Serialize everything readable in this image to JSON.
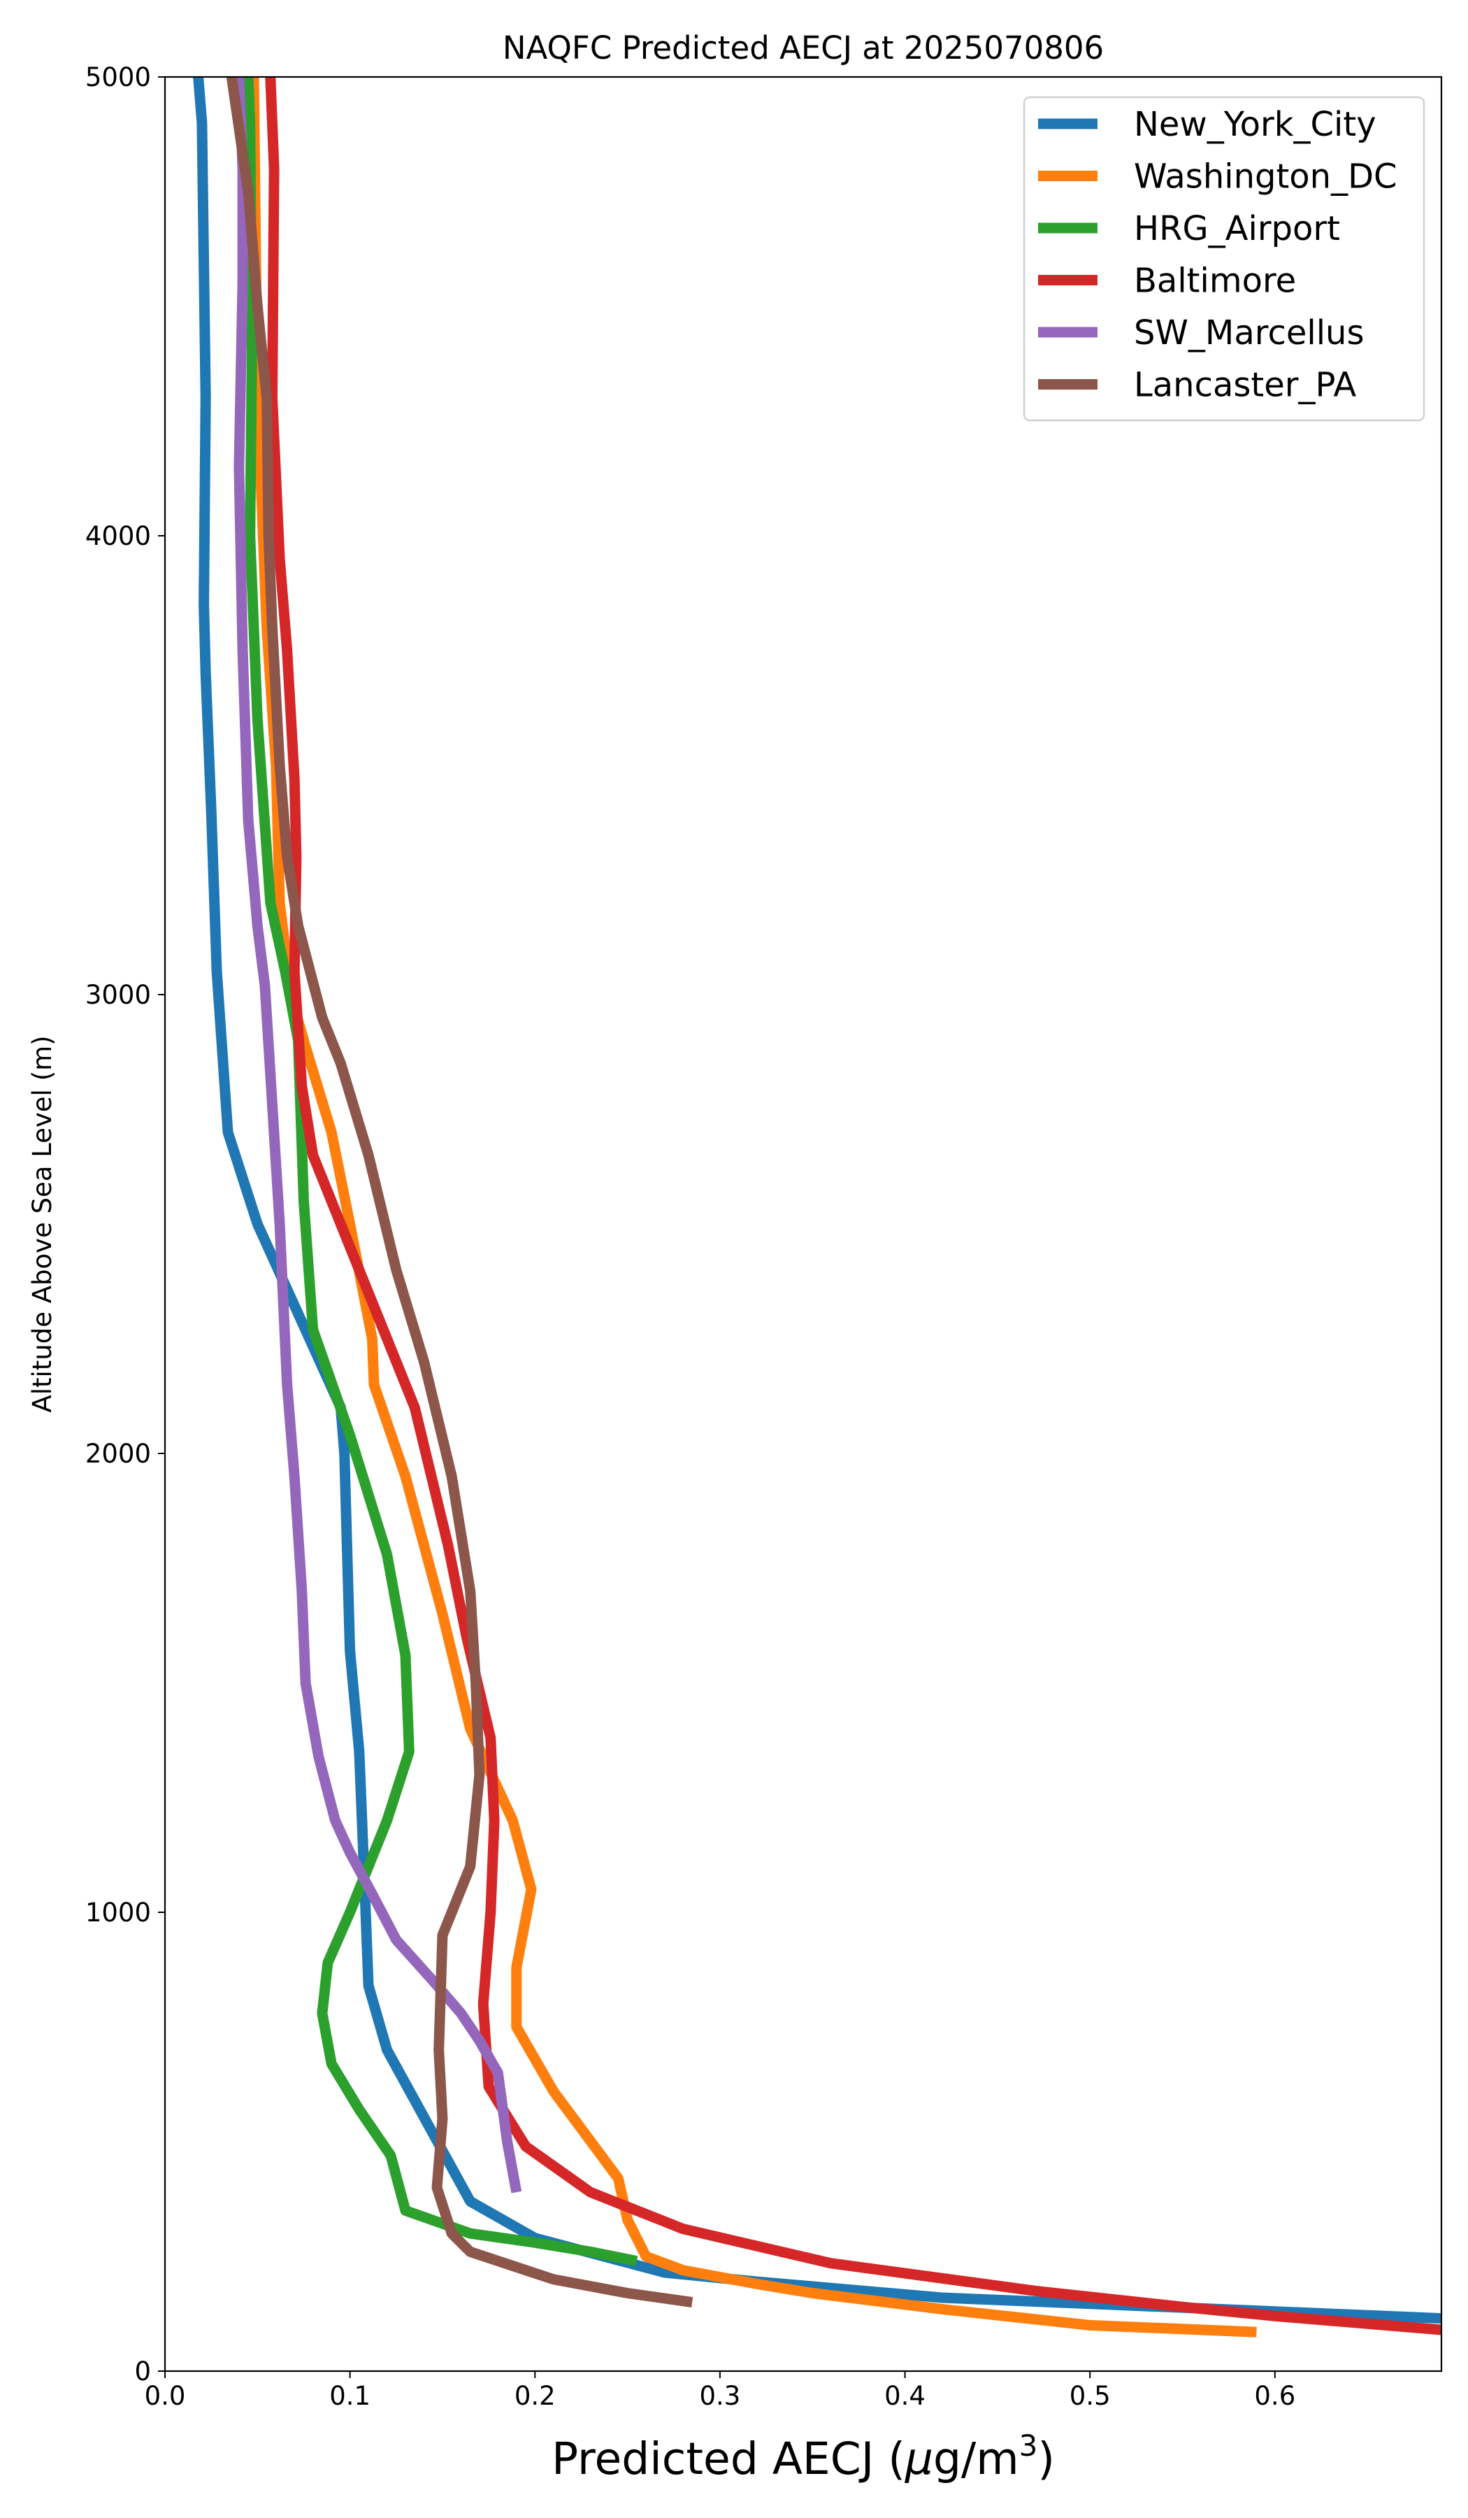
{
  "chart_data": {
    "type": "line",
    "title": "NAQFC Predicted AECJ at 2025070806",
    "xlabel": "Predicted AECJ (μg/m³)",
    "xlabel_parts": {
      "pre": "Predicted AECJ (",
      "mu": "μ",
      "mid": "g/m",
      "sup": "3",
      "post": ")"
    },
    "ylabel": "Altitude Above Sea Level (m)",
    "xlim": [
      0.0,
      0.69
    ],
    "ylim": [
      0,
      5000
    ],
    "xticks": [
      "0.0",
      "0.1",
      "0.2",
      "0.3",
      "0.4",
      "0.5",
      "0.6"
    ],
    "yticks": [
      "0",
      "1000",
      "2000",
      "3000",
      "4000",
      "5000"
    ],
    "grid": false,
    "legend_position": "top-right",
    "series": [
      {
        "name": "New_York_City",
        "color": "#1f77b4",
        "points": [
          [
            0.69,
            115
          ],
          [
            0.6,
            130
          ],
          [
            0.42,
            160
          ],
          [
            0.32,
            195
          ],
          [
            0.27,
            215
          ],
          [
            0.2,
            290
          ],
          [
            0.165,
            370
          ],
          [
            0.12,
            700
          ],
          [
            0.11,
            840
          ],
          [
            0.108,
            1050
          ],
          [
            0.105,
            1350
          ],
          [
            0.1,
            1570
          ],
          [
            0.097,
            2000
          ],
          [
            0.095,
            2100
          ],
          [
            0.05,
            2500
          ],
          [
            0.034,
            2700
          ],
          [
            0.028,
            3050
          ],
          [
            0.025,
            3400
          ],
          [
            0.022,
            3700
          ],
          [
            0.021,
            3850
          ],
          [
            0.022,
            4300
          ],
          [
            0.02,
            4900
          ],
          [
            0.018,
            5000
          ]
        ]
      },
      {
        "name": "Washington_DC",
        "color": "#ff7f0e",
        "points": [
          [
            0.59,
            85
          ],
          [
            0.5,
            100
          ],
          [
            0.42,
            135
          ],
          [
            0.35,
            170
          ],
          [
            0.32,
            190
          ],
          [
            0.28,
            220
          ],
          [
            0.26,
            250
          ],
          [
            0.25,
            330
          ],
          [
            0.245,
            420
          ],
          [
            0.21,
            610
          ],
          [
            0.19,
            750
          ],
          [
            0.19,
            880
          ],
          [
            0.198,
            1050
          ],
          [
            0.188,
            1200
          ],
          [
            0.165,
            1400
          ],
          [
            0.15,
            1650
          ],
          [
            0.13,
            1950
          ],
          [
            0.113,
            2150
          ],
          [
            0.112,
            2250
          ],
          [
            0.1,
            2500
          ],
          [
            0.09,
            2700
          ],
          [
            0.075,
            2900
          ],
          [
            0.068,
            3000
          ],
          [
            0.062,
            3200
          ],
          [
            0.06,
            3500
          ],
          [
            0.055,
            3800
          ],
          [
            0.05,
            4300
          ],
          [
            0.048,
            5000
          ]
        ]
      },
      {
        "name": "HRG_Airport",
        "color": "#2ca02c",
        "points": [
          [
            0.255,
            240
          ],
          [
            0.23,
            260
          ],
          [
            0.2,
            280
          ],
          [
            0.165,
            300
          ],
          [
            0.13,
            350
          ],
          [
            0.122,
            470
          ],
          [
            0.105,
            570
          ],
          [
            0.09,
            670
          ],
          [
            0.085,
            780
          ],
          [
            0.088,
            890
          ],
          [
            0.1,
            1000
          ],
          [
            0.12,
            1200
          ],
          [
            0.132,
            1350
          ],
          [
            0.13,
            1560
          ],
          [
            0.12,
            1780
          ],
          [
            0.1,
            2040
          ],
          [
            0.08,
            2270
          ],
          [
            0.075,
            2550
          ],
          [
            0.072,
            2900
          ],
          [
            0.065,
            3050
          ],
          [
            0.057,
            3200
          ],
          [
            0.05,
            3600
          ],
          [
            0.046,
            4000
          ],
          [
            0.047,
            4400
          ],
          [
            0.046,
            4900
          ],
          [
            0.045,
            5000
          ]
        ]
      },
      {
        "name": "Baltimore",
        "color": "#d62728",
        "points": [
          [
            0.69,
            90
          ],
          [
            0.6,
            120
          ],
          [
            0.55,
            140
          ],
          [
            0.47,
            175
          ],
          [
            0.36,
            235
          ],
          [
            0.28,
            310
          ],
          [
            0.23,
            390
          ],
          [
            0.195,
            490
          ],
          [
            0.175,
            620
          ],
          [
            0.172,
            800
          ],
          [
            0.176,
            1000
          ],
          [
            0.178,
            1200
          ],
          [
            0.176,
            1380
          ],
          [
            0.163,
            1600
          ],
          [
            0.153,
            1800
          ],
          [
            0.135,
            2100
          ],
          [
            0.12,
            2250
          ],
          [
            0.1,
            2450
          ],
          [
            0.08,
            2650
          ],
          [
            0.074,
            2800
          ],
          [
            0.07,
            3050
          ],
          [
            0.071,
            3300
          ],
          [
            0.07,
            3470
          ],
          [
            0.066,
            3750
          ],
          [
            0.062,
            3950
          ],
          [
            0.058,
            4300
          ],
          [
            0.059,
            4800
          ],
          [
            0.057,
            5000
          ]
        ]
      },
      {
        "name": "SW_Marcellus",
        "color": "#9467bd",
        "points": [
          [
            0.19,
            390
          ],
          [
            0.185,
            500
          ],
          [
            0.18,
            650
          ],
          [
            0.17,
            720
          ],
          [
            0.16,
            780
          ],
          [
            0.145,
            850
          ],
          [
            0.125,
            940
          ],
          [
            0.112,
            1040
          ],
          [
            0.1,
            1130
          ],
          [
            0.092,
            1200
          ],
          [
            0.083,
            1340
          ],
          [
            0.076,
            1500
          ],
          [
            0.074,
            1700
          ],
          [
            0.07,
            1950
          ],
          [
            0.066,
            2150
          ],
          [
            0.062,
            2500
          ],
          [
            0.054,
            3020
          ],
          [
            0.05,
            3150
          ],
          [
            0.045,
            3380
          ],
          [
            0.042,
            3750
          ],
          [
            0.04,
            4150
          ],
          [
            0.042,
            4550
          ],
          [
            0.042,
            4800
          ],
          [
            0.04,
            5000
          ]
        ]
      },
      {
        "name": "Lancaster_PA",
        "color": "#8c564b",
        "points": [
          [
            0.285,
            150
          ],
          [
            0.25,
            170
          ],
          [
            0.21,
            200
          ],
          [
            0.165,
            260
          ],
          [
            0.155,
            300
          ],
          [
            0.147,
            400
          ],
          [
            0.15,
            550
          ],
          [
            0.148,
            700
          ],
          [
            0.15,
            950
          ],
          [
            0.165,
            1100
          ],
          [
            0.17,
            1300
          ],
          [
            0.168,
            1500
          ],
          [
            0.165,
            1700
          ],
          [
            0.155,
            1950
          ],
          [
            0.14,
            2200
          ],
          [
            0.125,
            2400
          ],
          [
            0.11,
            2650
          ],
          [
            0.095,
            2850
          ],
          [
            0.085,
            2950
          ],
          [
            0.072,
            3150
          ],
          [
            0.066,
            3300
          ],
          [
            0.062,
            3500
          ],
          [
            0.058,
            3800
          ],
          [
            0.056,
            4000
          ],
          [
            0.055,
            4300
          ],
          [
            0.05,
            4500
          ],
          [
            0.045,
            4750
          ],
          [
            0.036,
            5000
          ]
        ]
      }
    ]
  }
}
